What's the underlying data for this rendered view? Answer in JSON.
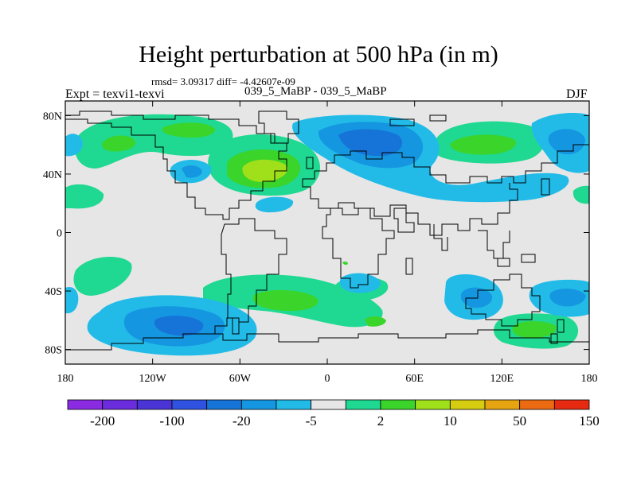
{
  "title": "Height perturbation at 500 hPa (in m)",
  "stats_line": "rmsd= 3.09317 diff= -4.42607e-09",
  "left_label": "Expt = texvi1-texvi",
  "center_label": "039_5_MaBP - 039_5_MaBP",
  "right_label": "DJF",
  "axes": {
    "lat_ticks": [
      {
        "value": 80,
        "label": "80N"
      },
      {
        "value": 40,
        "label": "40N"
      },
      {
        "value": 0,
        "label": "0"
      },
      {
        "value": -40,
        "label": "40S"
      },
      {
        "value": -80,
        "label": "80S"
      }
    ],
    "lon_ticks": [
      {
        "value": -180,
        "label": "180"
      },
      {
        "value": -120,
        "label": "120W"
      },
      {
        "value": -60,
        "label": "60W"
      },
      {
        "value": 0,
        "label": "0"
      },
      {
        "value": 60,
        "label": "60E"
      },
      {
        "value": 120,
        "label": "120E"
      },
      {
        "value": 180,
        "label": "180"
      }
    ],
    "lon_range": [
      -180,
      180
    ],
    "lat_range": [
      -90,
      90
    ]
  },
  "colorbar": {
    "colors": [
      "#8a2be2",
      "#6a2cdc",
      "#4a34d6",
      "#2f52e0",
      "#1673d8",
      "#1596e0",
      "#22bbe8",
      "#e6e6e6",
      "#1fd891",
      "#3bd42a",
      "#a0e01a",
      "#d6cc10",
      "#e6a410",
      "#ec6a12",
      "#e62a12"
    ],
    "labels": [
      {
        "after_index": 0,
        "text": "-200"
      },
      {
        "after_index": 2,
        "text": "-100"
      },
      {
        "after_index": 4,
        "text": "-20"
      },
      {
        "after_index": 6,
        "text": "-5"
      },
      {
        "after_index": 8,
        "text": "2"
      },
      {
        "after_index": 10,
        "text": "10"
      },
      {
        "after_index": 12,
        "text": "50"
      },
      {
        "after_index": 14,
        "text": "150"
      }
    ]
  },
  "field_colors": {
    "background": "#e6e6e6",
    "pos_weak": "#1fd891",
    "pos_mid": "#3bd42a",
    "pos_strong": "#a0e01a",
    "pos_peak": "#d6cc10",
    "neg_weak": "#22bbe8",
    "neg_mid": "#1596e0",
    "neg_strong": "#1673d8"
  }
}
